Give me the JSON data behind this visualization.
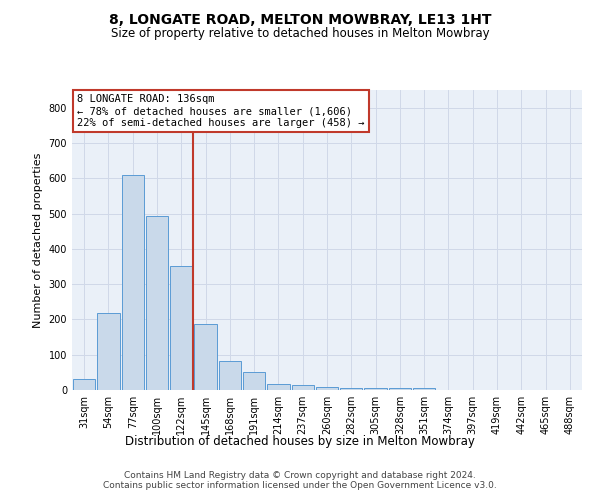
{
  "title1": "8, LONGATE ROAD, MELTON MOWBRAY, LE13 1HT",
  "title2": "Size of property relative to detached houses in Melton Mowbray",
  "xlabel": "Distribution of detached houses by size in Melton Mowbray",
  "ylabel": "Number of detached properties",
  "bar_labels": [
    "31sqm",
    "54sqm",
    "77sqm",
    "100sqm",
    "122sqm",
    "145sqm",
    "168sqm",
    "191sqm",
    "214sqm",
    "237sqm",
    "260sqm",
    "282sqm",
    "305sqm",
    "328sqm",
    "351sqm",
    "374sqm",
    "397sqm",
    "419sqm",
    "442sqm",
    "465sqm",
    "488sqm"
  ],
  "bar_values": [
    30,
    218,
    609,
    493,
    352,
    188,
    83,
    50,
    18,
    13,
    8,
    6,
    6,
    5,
    6,
    0,
    0,
    0,
    0,
    0,
    0
  ],
  "bar_color": "#c9d9ea",
  "bar_edge_color": "#5b9bd5",
  "grid_color": "#d0d8e8",
  "vline_x": 4.5,
  "vline_color": "#c0392b",
  "annotation_text": "8 LONGATE ROAD: 136sqm\n← 78% of detached houses are smaller (1,606)\n22% of semi-detached houses are larger (458) →",
  "annotation_box_color": "#c0392b",
  "ylim": [
    0,
    850
  ],
  "yticks": [
    0,
    100,
    200,
    300,
    400,
    500,
    600,
    700,
    800
  ],
  "footer": "Contains HM Land Registry data © Crown copyright and database right 2024.\nContains public sector information licensed under the Open Government Licence v3.0.",
  "bg_color": "#eaf0f8",
  "title1_fontsize": 10,
  "title2_fontsize": 8.5,
  "ylabel_fontsize": 8,
  "xlabel_fontsize": 8.5,
  "tick_fontsize": 7,
  "footer_fontsize": 6.5,
  "annotation_fontsize": 7.5
}
